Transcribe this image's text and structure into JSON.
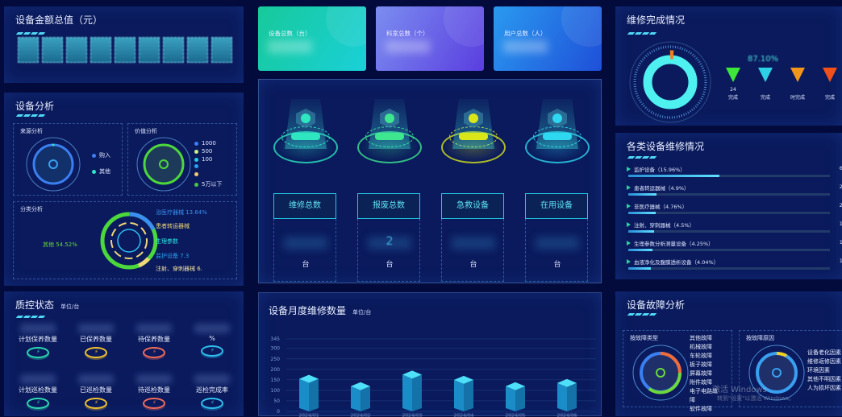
{
  "asset_total": {
    "title": "设备金额总值（元）",
    "digits": 9
  },
  "device_analysis": {
    "title": "设备分析",
    "source": {
      "title": "来源分析",
      "legend": [
        {
          "label": "购入",
          "color": "#3a7ff0"
        },
        {
          "label": "其他",
          "color": "#2ee6c8"
        }
      ]
    },
    "value": {
      "title": "价值分析",
      "legend": [
        {
          "label": "1000",
          "color": "#3a7ff0"
        },
        {
          "label": "500",
          "color": "#c8f08a"
        },
        {
          "label": "100",
          "color": "#2ec8e6"
        },
        {
          "label": "",
          "color": "#2aa0f0"
        },
        {
          "label": "",
          "color": "#f0c878"
        },
        {
          "label": "5万以下",
          "color": "#4cc24c"
        }
      ]
    },
    "category": {
      "title": "分类分析",
      "labels": [
        {
          "text": "治医疗器械 13.64%",
          "color": "#3a8ff0"
        },
        {
          "text": "患者转运器械",
          "color": "#f0d878"
        },
        {
          "text": "生理参数",
          "color": "#2ee6e6"
        },
        {
          "text": "监护设备 7.3",
          "color": "#2aa0f0"
        },
        {
          "text": "注射、穿刺器械 6.",
          "color": "#f0e0a0"
        },
        {
          "text": "其他 54.52%",
          "color": "#6cd83c"
        }
      ]
    }
  },
  "quality": {
    "title": "质控状态",
    "unit": "单位/台",
    "items": [
      {
        "label": "计划保养数量",
        "color": "#2ed8b0"
      },
      {
        "label": "已保养数量",
        "color": "#f0c030"
      },
      {
        "label": "待保养数量",
        "color": "#f06a5a"
      },
      {
        "label": "%",
        "color": "#2ec0f0",
        "rate": true,
        "label2": "成率"
      },
      {
        "label": "计划巡检数量",
        "color": "#2ed8b0"
      },
      {
        "label": "已巡检数量",
        "color": "#f0c030",
        "value": "135"
      },
      {
        "label": "待巡检数量",
        "color": "#f06a5a"
      },
      {
        "label": "巡检完成率",
        "color": "#2ec0f0"
      }
    ]
  },
  "cards": [
    {
      "label": "设备总数（台）",
      "gradient": [
        "#17c99a",
        "#1ad0d8"
      ]
    },
    {
      "label": "科室总数（个）",
      "gradient": [
        "#7b8df0",
        "#5a3ee0"
      ]
    },
    {
      "label": "用户总数（人）",
      "gradient": [
        "#2a9af0",
        "#1f4fd8"
      ]
    }
  ],
  "stats": [
    {
      "label": "维修总数",
      "unit": "台",
      "color": "#2ee6c0"
    },
    {
      "label": "报废总数",
      "unit": "台",
      "value": "2",
      "color": "#3ee690"
    },
    {
      "label": "急救设备",
      "unit": "台",
      "color": "#d8e61a"
    },
    {
      "label": "在用设备",
      "unit": "台",
      "color": "#2ed8f0"
    }
  ],
  "monthly": {
    "title": "设备月度维修数量",
    "unit": "单位/台"
  },
  "chart_data": {
    "type": "bar",
    "title": "设备月度维修数量",
    "ylabel": "单位/台",
    "categories": [
      "2024/01",
      "2024/02",
      "2024/03",
      "2024/04",
      "2024/05",
      "2024/06"
    ],
    "values": [
      155,
      120,
      175,
      150,
      120,
      135
    ],
    "ylim": [
      0,
      345
    ],
    "yticks": [
      0,
      50,
      100,
      150,
      200,
      250,
      300,
      345
    ],
    "grid": true
  },
  "repair_done": {
    "title": "维修完成情况",
    "percent_text": "87.10%",
    "items": [
      {
        "label": "完成",
        "prefix": "24",
        "color": "#3ee63a"
      },
      {
        "label": "完成",
        "color": "#2ed0e6"
      },
      {
        "label": "时完成",
        "color": "#f0961a"
      },
      {
        "label": "完成",
        "color": "#f0501a"
      }
    ]
  },
  "repair_by_type": {
    "title": "各类设备维修情况",
    "items": [
      {
        "label": "监护设备（15.96%）",
        "percent": 15.96,
        "count": "69"
      },
      {
        "label": "患者转运器械（4.9%）",
        "percent": 4.9,
        "count": "21"
      },
      {
        "label": "非医疗器械（4.76%）",
        "percent": 4.76,
        "count": "20"
      },
      {
        "label": "注射、穿刺器械（4.5%）",
        "percent": 4.5,
        "count": "19"
      },
      {
        "label": "生理参数分析测量设备（4.25%）",
        "percent": 4.25,
        "count": "18"
      },
      {
        "label": "血液净化及腹膜透析设备（4.04%）",
        "percent": 4.04,
        "count": "17"
      }
    ]
  },
  "fault": {
    "title": "设备故障分析",
    "type": {
      "title": "按故障类型",
      "legend": [
        "其他故障",
        "机械故障",
        "车轮故障",
        "板子故障",
        "屏幕故障",
        "附件故障",
        "电子电路故障",
        "软件故障"
      ]
    },
    "cause": {
      "title": "按故障原因",
      "legend": [
        "设备老化因素",
        "维修返修因素",
        "环境因素",
        "其他不明因素",
        "人为损坏因素"
      ]
    }
  },
  "watermark": {
    "line1": "激活 Windows",
    "line2": "转到\"设置\"以激活 Windows。"
  }
}
